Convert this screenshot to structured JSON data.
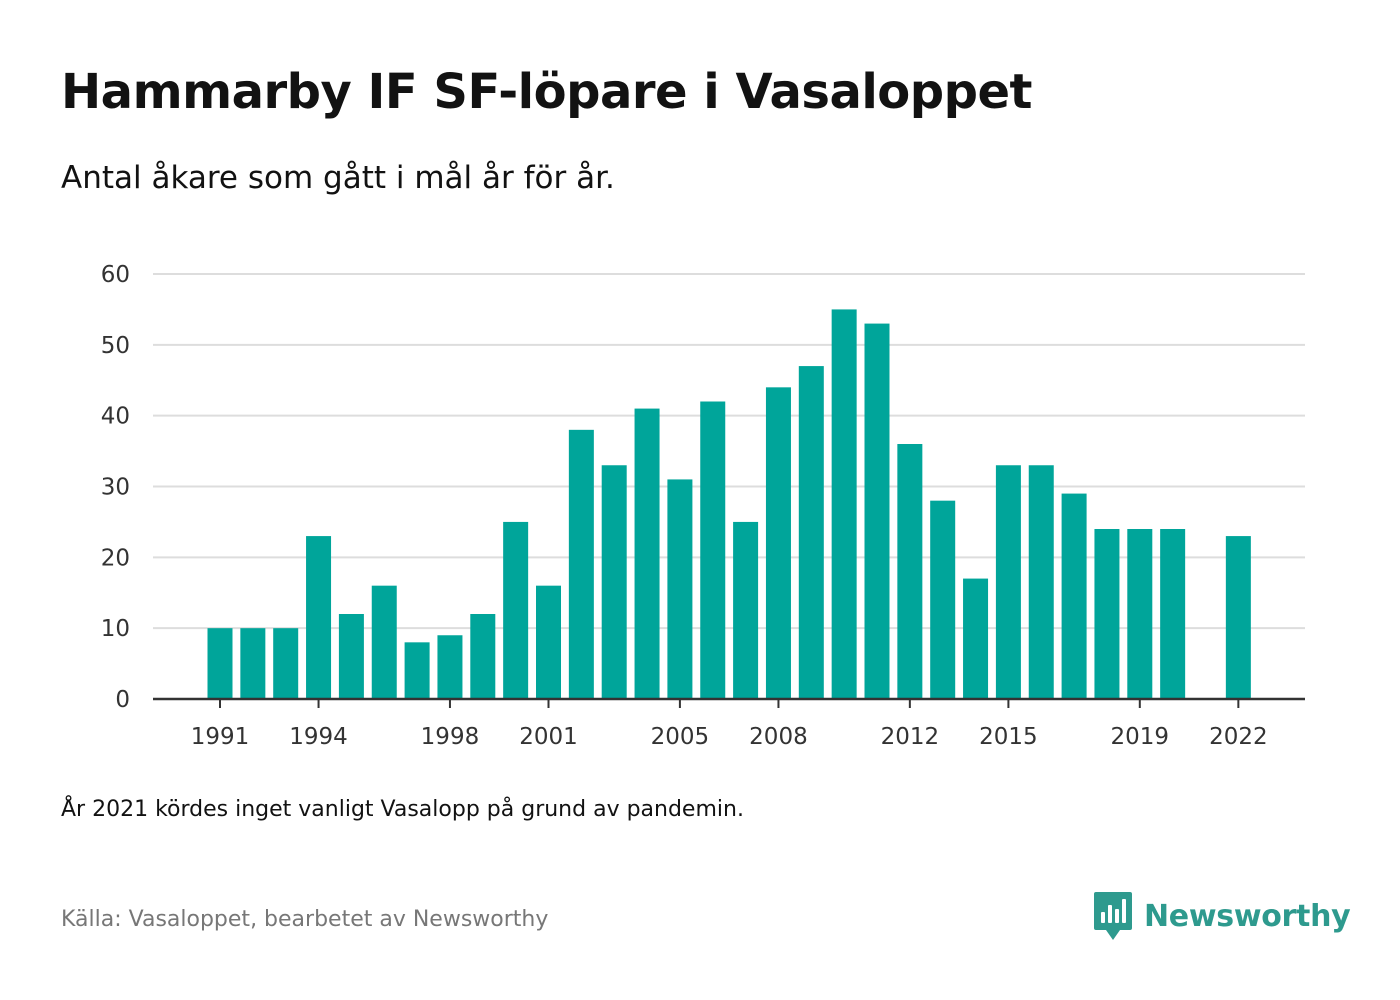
{
  "title": "Hammarby IF SF-löpare i Vasaloppet",
  "subtitle": "Antal åkare som gått i mål år för år.",
  "note": "År 2021 kördes inget vanligt Vasalopp på grund av pandemin.",
  "source": "Källa: Vasaloppet, bearbetet av Newsworthy",
  "brand": {
    "name": "Newsworthy",
    "icon": "newsworthy-logo-icon",
    "color": "#2e9a8e"
  },
  "colors": {
    "bar": "#00a59a",
    "grid": "#dddddd",
    "axis": "#333333"
  },
  "chart_data": {
    "type": "bar",
    "title": "Hammarby IF SF-löpare i Vasaloppet",
    "subtitle": "Antal åkare som gått i mål år för år.",
    "xlabel": "",
    "ylabel": "",
    "categories": [
      1991,
      1992,
      1993,
      1994,
      1995,
      1996,
      1997,
      1998,
      1999,
      2000,
      2001,
      2002,
      2003,
      2004,
      2005,
      2006,
      2007,
      2008,
      2009,
      2010,
      2011,
      2012,
      2013,
      2014,
      2015,
      2016,
      2017,
      2018,
      2019,
      2020,
      2021,
      2022
    ],
    "values": [
      10,
      10,
      10,
      23,
      12,
      16,
      8,
      9,
      12,
      25,
      16,
      38,
      33,
      41,
      31,
      42,
      25,
      44,
      47,
      55,
      53,
      36,
      28,
      17,
      33,
      33,
      29,
      24,
      24,
      24,
      null,
      23
    ],
    "x_tick_labels": [
      1991,
      1994,
      1998,
      2001,
      2005,
      2008,
      2012,
      2015,
      2019,
      2022
    ],
    "y_ticks": [
      0,
      10,
      20,
      30,
      40,
      50,
      60
    ],
    "ylim": [
      0,
      60
    ],
    "grid": "horizontal",
    "legend": "none"
  }
}
